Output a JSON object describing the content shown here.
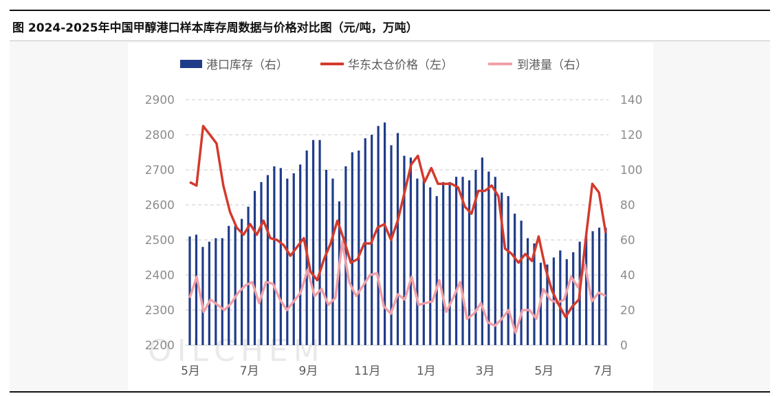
{
  "title": "图  2024-2025年中国甲醇港口样本库存周数据与价格对比图（元/吨，万吨）",
  "watermark": "OILCHEM",
  "colors": {
    "inventory_bar": "#1f3c88",
    "price_line": "#d33a2c",
    "arrival_line": "#f0a0a8",
    "grid": "#c8c8c8"
  },
  "chart_data": {
    "type": "bar",
    "grid": true,
    "legend_position": "top",
    "x_tick_labels": [
      "5月",
      "7月",
      "9月",
      "11月",
      "1月",
      "3月",
      "5月",
      "7月"
    ],
    "y_left": {
      "min": 2200,
      "max": 2900,
      "ticks": [
        2200,
        2300,
        2400,
        2500,
        2600,
        2700,
        2800,
        2900
      ]
    },
    "y_right": {
      "min": 0,
      "max": 140,
      "ticks": [
        0,
        20,
        40,
        60,
        80,
        100,
        120,
        140
      ]
    },
    "series": [
      {
        "name": "港口库存（右）",
        "type": "bar",
        "axis": "right",
        "values": [
          62,
          63,
          56,
          59,
          61,
          61,
          68,
          68,
          72,
          79,
          88,
          93,
          97,
          102,
          101,
          95,
          98,
          103,
          111,
          117,
          117,
          100,
          95,
          82,
          102,
          110,
          111,
          118,
          120,
          125,
          127,
          114,
          121,
          108,
          107,
          95,
          94,
          90,
          85,
          93,
          93,
          96,
          96,
          94,
          100,
          107,
          99,
          96,
          87,
          85,
          75,
          71,
          61,
          58,
          47,
          46,
          50,
          54,
          49,
          53,
          59,
          63,
          65,
          67,
          67
        ]
      },
      {
        "name": "华东太仓价格（左）",
        "type": "line",
        "axis": "left",
        "values": [
          2665,
          2655,
          2825,
          2800,
          2775,
          2655,
          2580,
          2535,
          2515,
          2545,
          2515,
          2555,
          2505,
          2500,
          2485,
          2455,
          2480,
          2505,
          2410,
          2385,
          2445,
          2490,
          2555,
          2500,
          2435,
          2445,
          2490,
          2490,
          2535,
          2545,
          2500,
          2555,
          2635,
          2715,
          2740,
          2665,
          2705,
          2660,
          2660,
          2660,
          2650,
          2595,
          2575,
          2640,
          2640,
          2655,
          2625,
          2475,
          2460,
          2435,
          2460,
          2440,
          2510,
          2420,
          2355,
          2315,
          2280,
          2310,
          2330,
          2500,
          2660,
          2635,
          2520
        ]
      },
      {
        "name": "到港量（右）",
        "type": "line",
        "axis": "right",
        "values": [
          27,
          39,
          19,
          26,
          23,
          20,
          24,
          30,
          34,
          36,
          24,
          36,
          35,
          26,
          20,
          25,
          30,
          43,
          28,
          32,
          23,
          27,
          59,
          36,
          28,
          34,
          40,
          41,
          22,
          18,
          29,
          26,
          39,
          23,
          24,
          25,
          37,
          19,
          27,
          36,
          15,
          18,
          24,
          13,
          11,
          15,
          20,
          7,
          20,
          20,
          15,
          32,
          26,
          24,
          26,
          39,
          33,
          46,
          25,
          30,
          28
        ]
      }
    ]
  }
}
